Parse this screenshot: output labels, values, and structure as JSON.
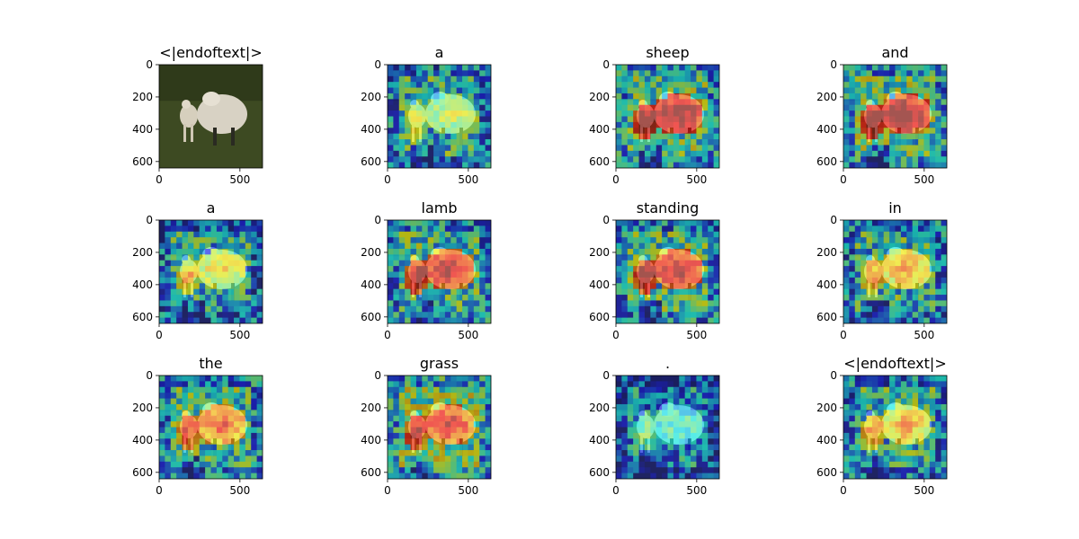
{
  "figure": {
    "description_colormap": "jet",
    "colors": {
      "grass_dark": "#3d4a22",
      "sheep_wool": "#d8d2c4",
      "low": "#00007f",
      "mid": "#7fff7f",
      "high": "#7f0000"
    }
  },
  "chart_data": [
    {
      "type": "heatmap",
      "title": "<|endoftext|>",
      "kind": "original-image",
      "xticks": [
        0,
        500
      ],
      "yticks": [
        0,
        200,
        400,
        600
      ],
      "xlim": [
        0,
        640
      ],
      "ylim": [
        640,
        0
      ]
    },
    {
      "type": "heatmap",
      "title": "a",
      "kind": "attention-overlay",
      "xticks": [
        0,
        500
      ],
      "yticks": [
        0,
        200,
        400,
        600
      ],
      "xlim": [
        0,
        640
      ],
      "ylim": [
        640,
        0
      ]
    },
    {
      "type": "heatmap",
      "title": "sheep",
      "kind": "attention-overlay",
      "xticks": [
        0,
        500
      ],
      "yticks": [
        0,
        200,
        400,
        600
      ],
      "xlim": [
        0,
        640
      ],
      "ylim": [
        640,
        0
      ]
    },
    {
      "type": "heatmap",
      "title": "and",
      "kind": "attention-overlay",
      "xticks": [
        0,
        500
      ],
      "yticks": [
        0,
        200,
        400,
        600
      ],
      "xlim": [
        0,
        640
      ],
      "ylim": [
        640,
        0
      ]
    },
    {
      "type": "heatmap",
      "title": "a",
      "kind": "attention-overlay",
      "xticks": [
        0,
        500
      ],
      "yticks": [
        0,
        200,
        400,
        600
      ],
      "xlim": [
        0,
        640
      ],
      "ylim": [
        640,
        0
      ]
    },
    {
      "type": "heatmap",
      "title": "lamb",
      "kind": "attention-overlay",
      "xticks": [
        0,
        500
      ],
      "yticks": [
        0,
        200,
        400,
        600
      ],
      "xlim": [
        0,
        640
      ],
      "ylim": [
        640,
        0
      ]
    },
    {
      "type": "heatmap",
      "title": "standing",
      "kind": "attention-overlay",
      "xticks": [
        0,
        500
      ],
      "yticks": [
        0,
        200,
        400,
        600
      ],
      "xlim": [
        0,
        640
      ],
      "ylim": [
        640,
        0
      ]
    },
    {
      "type": "heatmap",
      "title": "in",
      "kind": "attention-overlay",
      "xticks": [
        0,
        500
      ],
      "yticks": [
        0,
        200,
        400,
        600
      ],
      "xlim": [
        0,
        640
      ],
      "ylim": [
        640,
        0
      ]
    },
    {
      "type": "heatmap",
      "title": "the",
      "kind": "attention-overlay",
      "xticks": [
        0,
        500
      ],
      "yticks": [
        0,
        200,
        400,
        600
      ],
      "xlim": [
        0,
        640
      ],
      "ylim": [
        640,
        0
      ]
    },
    {
      "type": "heatmap",
      "title": "grass",
      "kind": "attention-overlay",
      "xticks": [
        0,
        500
      ],
      "yticks": [
        0,
        200,
        400,
        600
      ],
      "xlim": [
        0,
        640
      ],
      "ylim": [
        640,
        0
      ]
    },
    {
      "type": "heatmap",
      "title": ".",
      "kind": "attention-overlay",
      "xticks": [
        0,
        500
      ],
      "yticks": [
        0,
        200,
        400,
        600
      ],
      "xlim": [
        0,
        640
      ],
      "ylim": [
        640,
        0
      ]
    },
    {
      "type": "heatmap",
      "title": "<|endoftext|>",
      "kind": "attention-overlay",
      "xticks": [
        0,
        500
      ],
      "yticks": [
        0,
        200,
        400,
        600
      ],
      "xlim": [
        0,
        640
      ],
      "ylim": [
        640,
        0
      ]
    }
  ]
}
